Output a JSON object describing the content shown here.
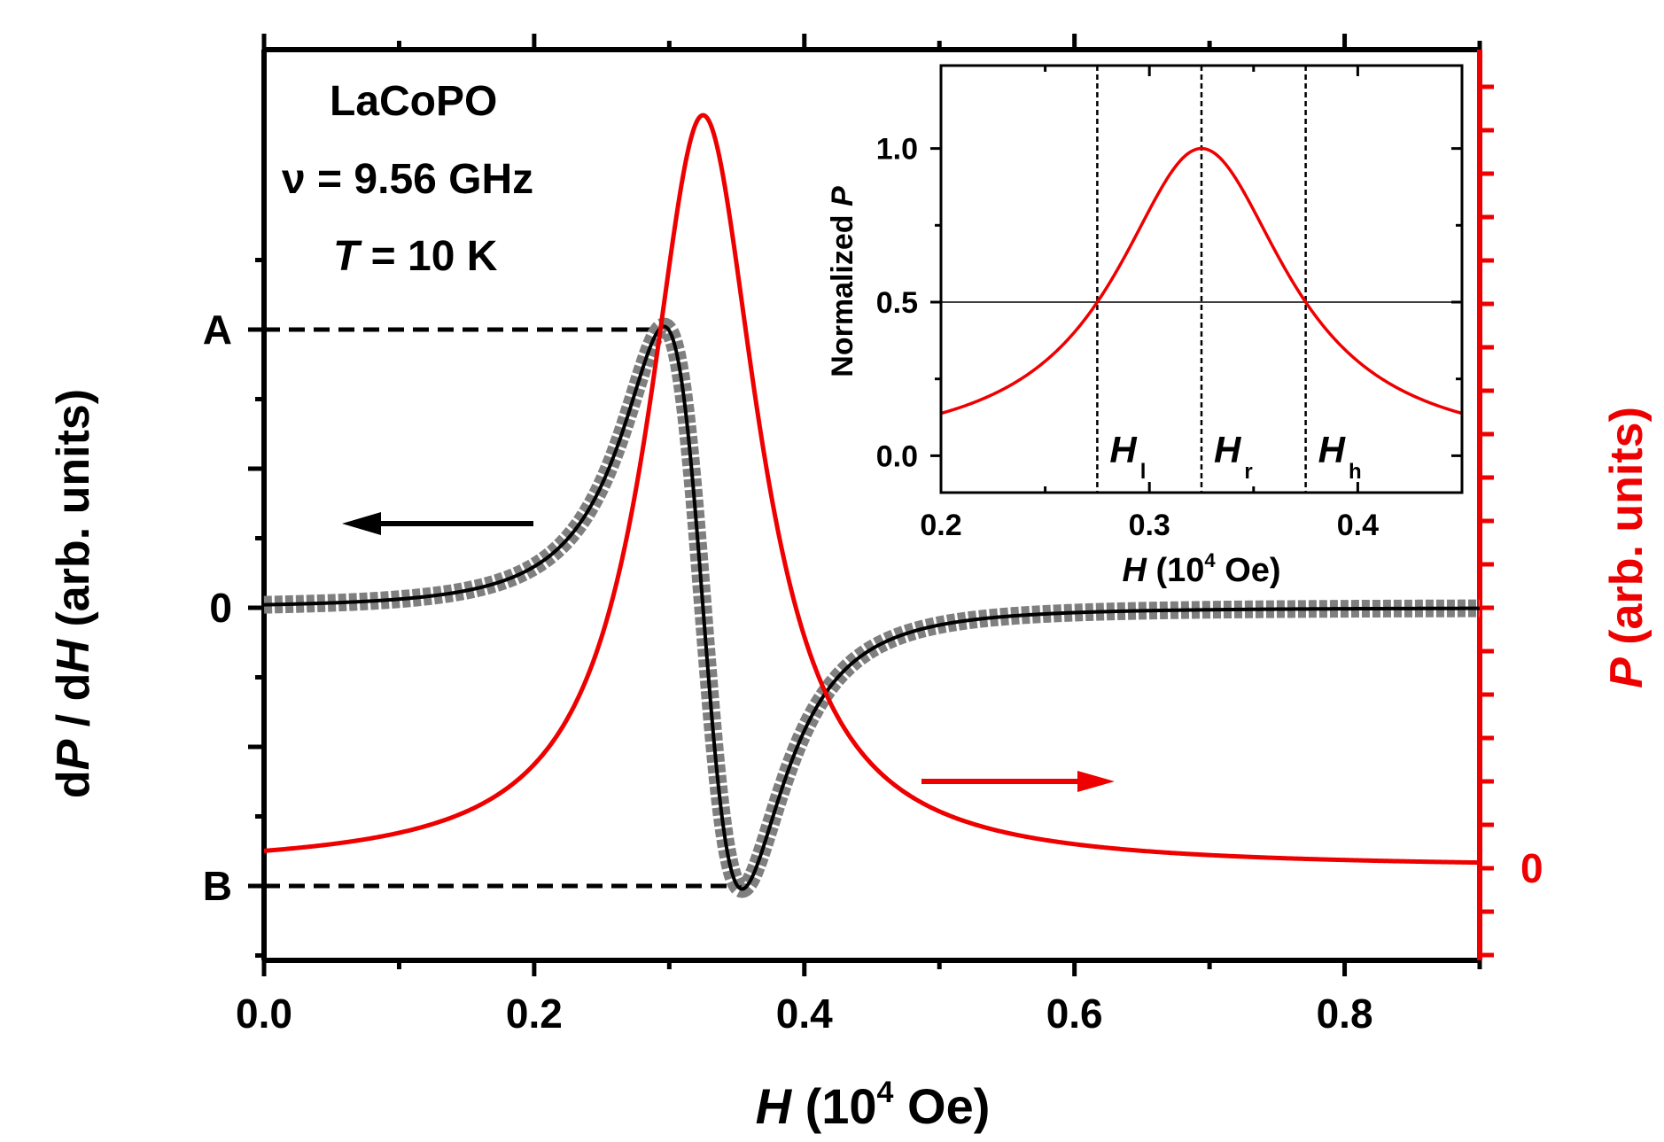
{
  "chart_data": [
    {
      "type": "line",
      "title": "",
      "annotation": {
        "sample": "LaCoPO",
        "freq_symbol": "ν",
        "freq_rest": " = 9.56 GHz",
        "temp_symbol": "T",
        "temp_rest": " = 10 K"
      },
      "xlabel": {
        "symbol": "H",
        "rest": " (10",
        "sup": "4",
        "end": " Oe)"
      },
      "ylabel_left": {
        "p1": "d",
        "p2": "P",
        "p3": " / d",
        "p4": "H",
        "p5": " (arb. units)"
      },
      "ylabel_right": {
        "p1": "P",
        "p2": "  (arb. units)"
      },
      "xlim": [
        0.0,
        0.9
      ],
      "xticks": [
        "0.0",
        "0.2",
        "0.4",
        "0.6",
        "0.8"
      ],
      "yticks_left": {
        "A": "A",
        "zero": "0",
        "B": "B"
      },
      "yticks_right": {
        "zero": "0"
      },
      "resonance": {
        "H_r": 0.325,
        "half_width": 0.05
      },
      "series": [
        {
          "key": "dPdH_data",
          "axis": "left",
          "color": "#7f7f7f",
          "style": "thick-gray-squares"
        },
        {
          "key": "dPdH_fit",
          "axis": "left",
          "color": "#000000",
          "style": "thin-black-line"
        },
        {
          "key": "P",
          "axis": "right",
          "color": "#ee0000",
          "style": "red-line"
        }
      ],
      "levels": {
        "A_x": 0.2925,
        "B_x": 0.3575
      }
    },
    {
      "type": "line",
      "xlabel": {
        "symbol": "H",
        "rest": " (10",
        "sup": "4",
        "end": " Oe)"
      },
      "ylabel": {
        "p1": "Normalized ",
        "p2": "P"
      },
      "xlim": [
        0.2,
        0.45
      ],
      "ylim": [
        -0.12,
        1.27
      ],
      "xticks": [
        "0.2",
        "0.3",
        "0.4"
      ],
      "yticks": [
        "0.0",
        "0.5",
        "1.0"
      ],
      "hline": 0.5,
      "vlines": [
        {
          "x": 0.275,
          "label": "H",
          "sub": "l"
        },
        {
          "x": 0.325,
          "label": "H",
          "sub": "r"
        },
        {
          "x": 0.375,
          "label": "H",
          "sub": "h"
        }
      ],
      "series": [
        {
          "key": "normalized_P",
          "color": "#ee0000"
        }
      ]
    }
  ]
}
